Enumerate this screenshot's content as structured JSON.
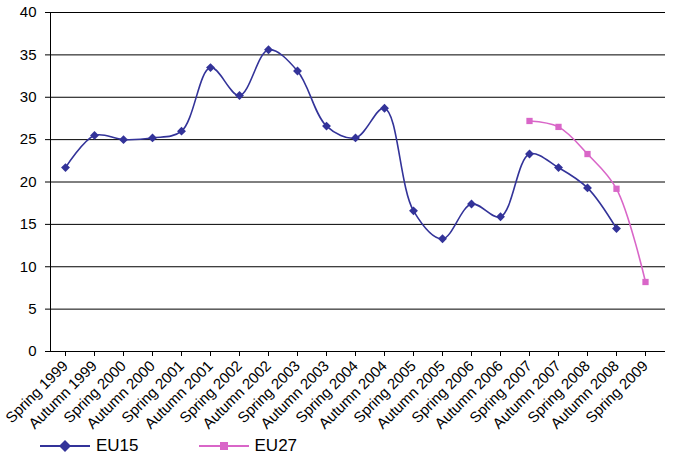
{
  "chart_data": {
    "type": "line",
    "categories": [
      "Spring 1999",
      "Autumn 1999",
      "Spring 2000",
      "Autumn 2000",
      "Spring 2001",
      "Autumn 2001",
      "Spring 2002",
      "Autumn 2002",
      "Spring 2003",
      "Autumn 2003",
      "Spring 2004",
      "Autumn 2004",
      "Spring 2005",
      "Autumn 2005",
      "Spring 2006",
      "Autumn 2006",
      "Spring 2007",
      "Autumn 2007",
      "Spring 2008",
      "Autumn 2008",
      "Spring 2009"
    ],
    "series": [
      {
        "name": "EU15",
        "color": "#333399",
        "marker": "diamond",
        "values": [
          21.7,
          25.5,
          25.0,
          25.2,
          26.0,
          33.5,
          30.2,
          35.6,
          33.1,
          26.6,
          25.2,
          28.7,
          16.6,
          13.3,
          17.4,
          15.9,
          23.3,
          21.7,
          19.3,
          14.5,
          null
        ]
      },
      {
        "name": "EU27",
        "color": "#d966c8",
        "marker": "square",
        "values": [
          null,
          null,
          null,
          null,
          null,
          null,
          null,
          null,
          null,
          null,
          null,
          null,
          null,
          null,
          null,
          null,
          27.2,
          26.5,
          23.3,
          19.2,
          8.2
        ]
      }
    ],
    "ylim": [
      0,
      40
    ],
    "yticks": [
      0,
      5,
      10,
      15,
      20,
      25,
      30,
      35,
      40
    ],
    "grid": true,
    "legend": "bottom"
  }
}
